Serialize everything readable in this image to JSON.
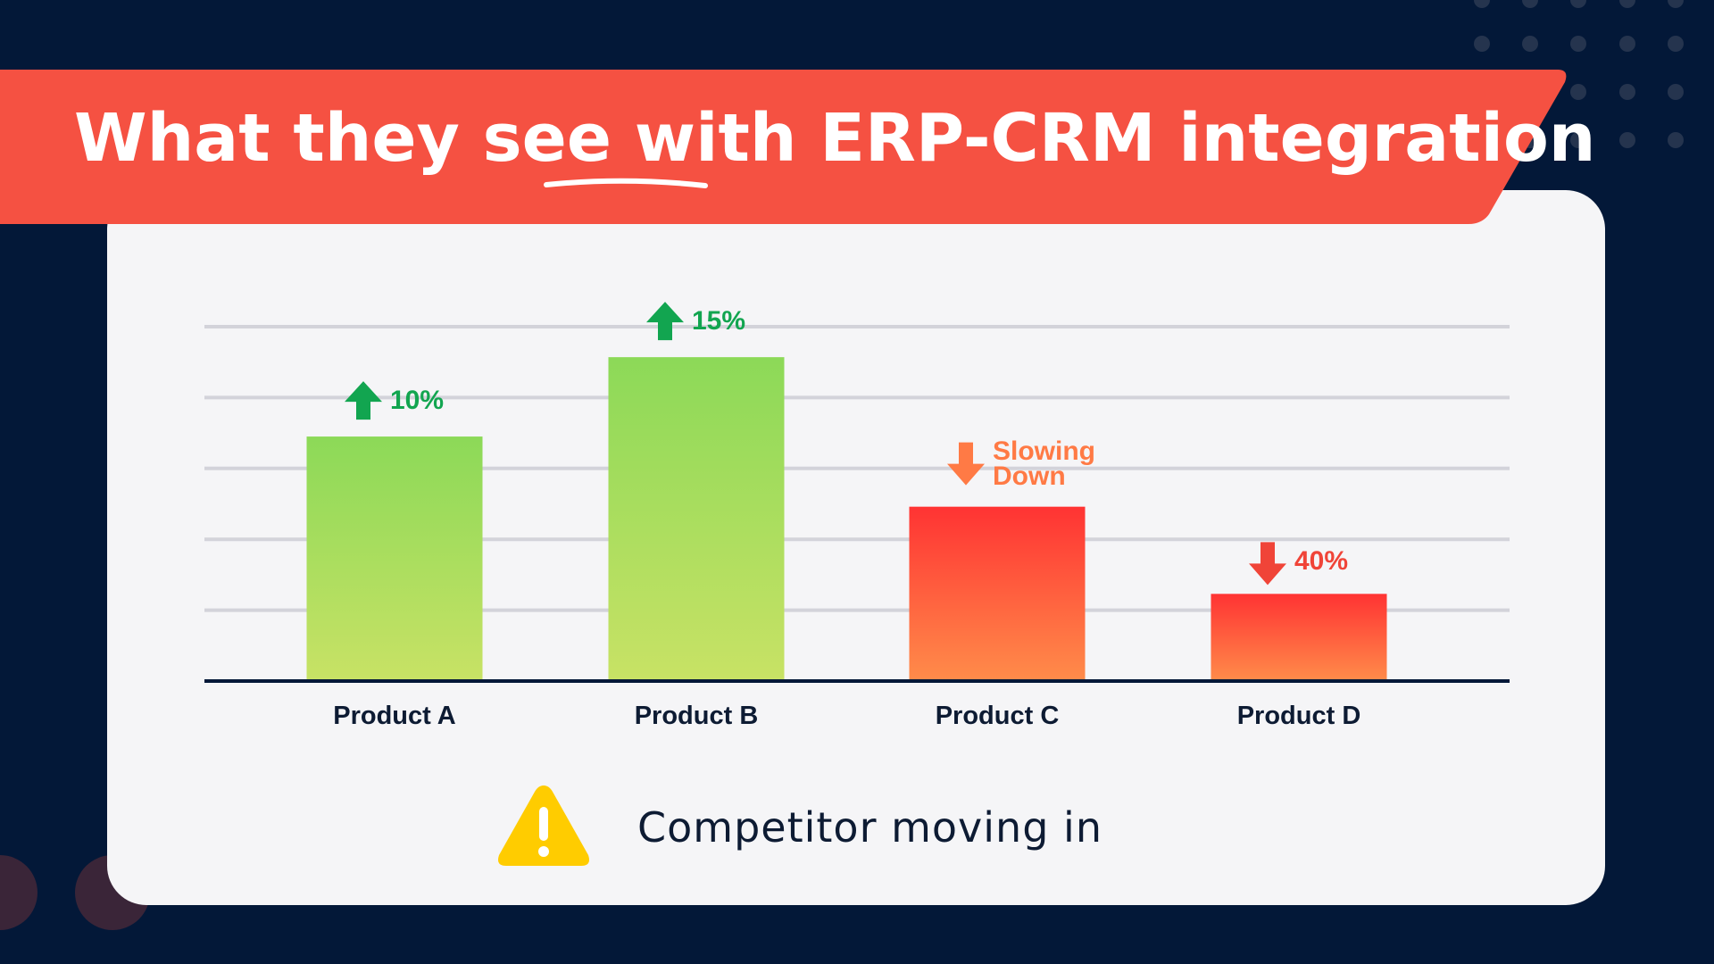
{
  "title": "What they see with ERP-CRM integration",
  "colors": {
    "background": "#031838",
    "banner": "#f55142",
    "card": "#f5f5f7",
    "up": "#12a550",
    "slowing": "#ff7a45",
    "down": "#f04438"
  },
  "chart_data": {
    "type": "bar",
    "categories": [
      "Product A",
      "Product B",
      "Product C",
      "Product D"
    ],
    "values": [
      3.45,
      4.57,
      2.46,
      1.23
    ],
    "ylim": [
      0,
      5
    ],
    "grid": true,
    "bar_colors": [
      [
        "#c8e265",
        "#8cd958"
      ],
      [
        "#c8e265",
        "#8cd958"
      ],
      [
        "#ff8c4a",
        "#ff3333"
      ],
      [
        "#ff8c4a",
        "#ff3333"
      ]
    ],
    "annotations": [
      {
        "category": "Product A",
        "direction": "up",
        "text": "10%",
        "color": "#12a550"
      },
      {
        "category": "Product B",
        "direction": "up",
        "text": "15%",
        "color": "#12a550"
      },
      {
        "category": "Product C",
        "direction": "down",
        "text": "Slowing Down",
        "color": "#ff7a45"
      },
      {
        "category": "Product D",
        "direction": "down",
        "text": "40%",
        "color": "#f04438"
      }
    ]
  },
  "footer": {
    "icon": "warning-icon",
    "text": "Competitor moving in"
  }
}
